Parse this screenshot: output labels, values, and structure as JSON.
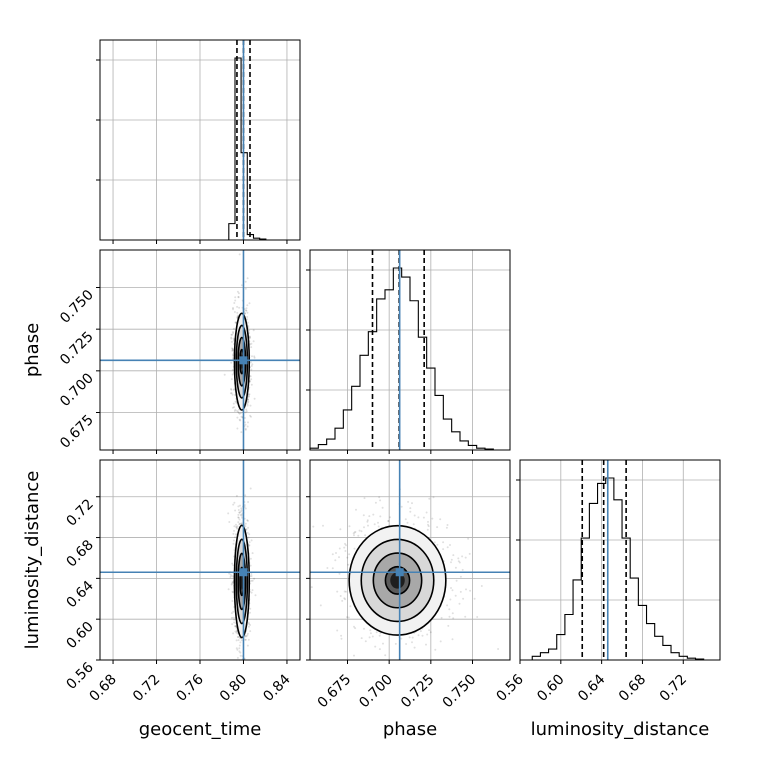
{
  "chart_data": {
    "type": "corner",
    "parameters": [
      {
        "name": "geocent_time",
        "truth": 0.8,
        "quantiles": [
          0.794,
          0.8,
          0.806
        ],
        "range": [
          0.668,
          0.852
        ],
        "ticks": [
          0.68,
          0.72,
          0.76,
          0.8,
          0.84
        ],
        "tick_labels": [
          "0.68",
          "0.72",
          "0.76",
          "0.80",
          "0.84"
        ]
      },
      {
        "name": "phase",
        "truth": 0.7063,
        "quantiles": [
          0.69,
          0.706,
          0.721
        ],
        "range": [
          0.6525,
          0.7725
        ],
        "ticks": [
          0.675,
          0.7,
          0.725,
          0.75
        ],
        "tick_labels": [
          "0.675",
          "0.700",
          "0.725",
          "0.750"
        ]
      },
      {
        "name": "luminosity_distance",
        "truth": 0.646,
        "quantiles": [
          0.621,
          0.642,
          0.664
        ],
        "range": [
          0.56,
          0.756
        ],
        "ticks": [
          0.56,
          0.6,
          0.64,
          0.68,
          0.72
        ],
        "tick_labels": [
          "0.56",
          "0.60",
          "0.64",
          "0.68",
          "0.72"
        ]
      }
    ],
    "histograms": [
      {
        "param": "geocent_time",
        "bin_edges": [
          0.7865,
          0.7922,
          0.7978,
          0.8035,
          0.8092,
          0.8149,
          0.8206
        ],
        "counts": [
          0.09,
          1.0,
          0.48,
          0.03,
          0.01,
          0.005
        ]
      },
      {
        "param": "phase",
        "bin_edges": [
          0.6525,
          0.6575,
          0.6625,
          0.6675,
          0.6725,
          0.6775,
          0.6825,
          0.6875,
          0.6925,
          0.6975,
          0.7025,
          0.7075,
          0.7125,
          0.7175,
          0.7225,
          0.7275,
          0.7325,
          0.7375,
          0.7425,
          0.7475,
          0.7525,
          0.7575,
          0.7625
        ],
        "counts": [
          0.01,
          0.03,
          0.06,
          0.12,
          0.22,
          0.35,
          0.52,
          0.65,
          0.83,
          0.88,
          1.0,
          0.95,
          0.82,
          0.62,
          0.45,
          0.3,
          0.17,
          0.1,
          0.05,
          0.025,
          0.01,
          0.005
        ]
      },
      {
        "param": "luminosity_distance",
        "bin_edges": [
          0.572,
          0.58,
          0.588,
          0.596,
          0.604,
          0.612,
          0.62,
          0.628,
          0.636,
          0.644,
          0.652,
          0.66,
          0.668,
          0.676,
          0.684,
          0.692,
          0.7,
          0.708,
          0.716,
          0.724,
          0.732,
          0.74
        ],
        "counts": [
          0.02,
          0.04,
          0.06,
          0.14,
          0.25,
          0.44,
          0.67,
          0.86,
          0.97,
          1.0,
          0.88,
          0.67,
          0.45,
          0.3,
          0.2,
          0.13,
          0.08,
          0.04,
          0.02,
          0.01,
          0.005
        ]
      }
    ],
    "contour_panels": [
      {
        "x": "geocent_time",
        "y": "phase",
        "center": [
          0.7985,
          0.7055
        ],
        "sigma": [
          0.0034,
          0.0145
        ]
      },
      {
        "x": "geocent_time",
        "y": "luminosity_distance",
        "center": [
          0.7985,
          0.637
        ],
        "sigma": [
          0.0034,
          0.0275
        ]
      },
      {
        "x": "phase",
        "y": "luminosity_distance",
        "center": [
          0.705,
          0.638
        ],
        "sigma": [
          0.0145,
          0.0268
        ]
      }
    ],
    "contour_levels_sigma": [
      0.5,
      1.0,
      1.5,
      2.0
    ],
    "truth_color": "#4682b4",
    "grid": true
  }
}
